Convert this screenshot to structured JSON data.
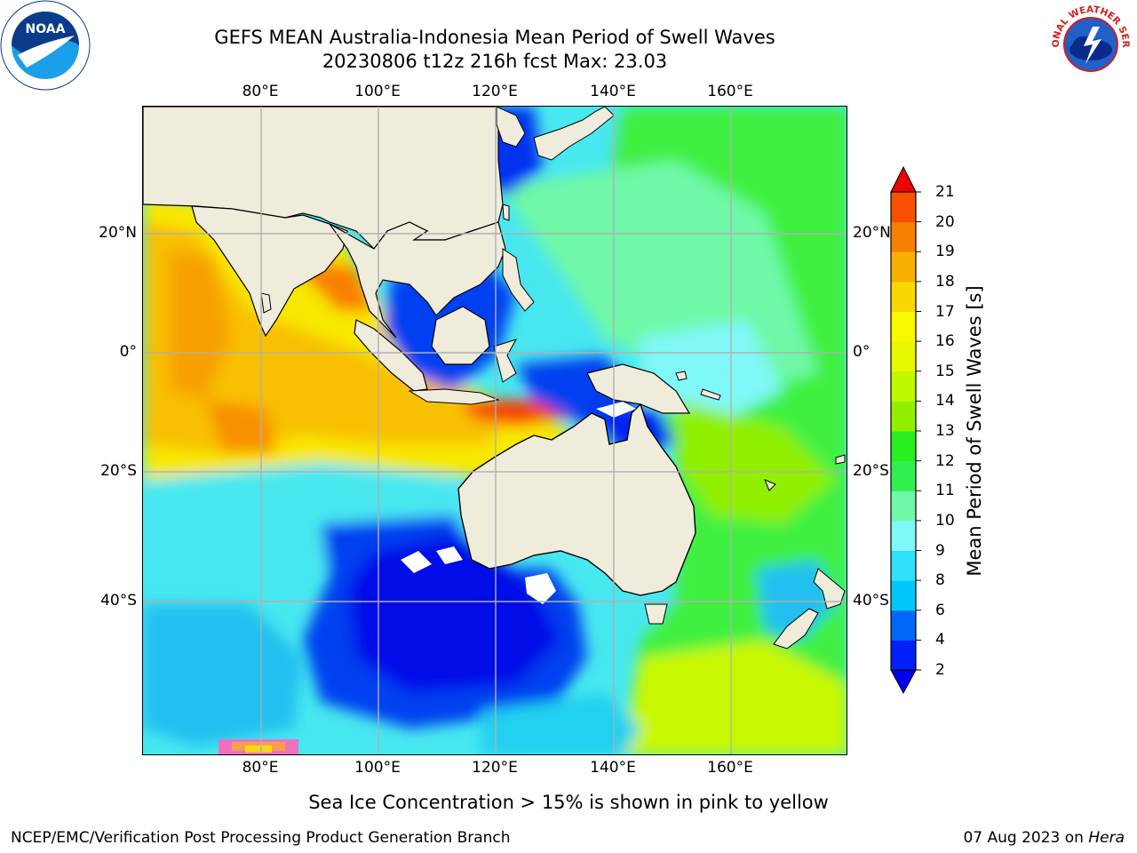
{
  "header": {
    "title_line1": "GEFS MEAN Australia-Indonesia Mean Period of Swell Waves",
    "title_line2": "20230806 t12z 216h fcst   Max: 23.03"
  },
  "map": {
    "lon_labels": [
      "80°E",
      "100°E",
      "120°E",
      "140°E",
      "160°E"
    ],
    "lat_labels": [
      "20°N",
      "0°",
      "20°S",
      "40°S"
    ],
    "extent": {
      "lon_min": 60,
      "lon_max": 180,
      "lat_min": -68,
      "lat_max": 41
    }
  },
  "colorbar": {
    "label": "Mean Period of Swell Waves [s]",
    "ticks": [
      "2",
      "4",
      "6",
      "8",
      "9",
      "10",
      "11",
      "12",
      "13",
      "14",
      "15",
      "16",
      "17",
      "18",
      "19",
      "20",
      "21"
    ],
    "colors": [
      "#0020f8",
      "#0068f8",
      "#00c8f8",
      "#30e0f8",
      "#80f8f8",
      "#70f8a8",
      "#30f050",
      "#28f020",
      "#90f000",
      "#c0f800",
      "#e8f800",
      "#f8f800",
      "#f8d800",
      "#f8b000",
      "#f88000",
      "#f85000",
      "#f82000"
    ],
    "under_color": "#0000f0",
    "over_color": "#f00000"
  },
  "notes": {
    "ice_note": "Sea Ice Concentration > 15% is shown in pink to yellow"
  },
  "footer": {
    "left": "NCEP/EMC/Verification Post Processing Product Generation Branch",
    "date": "07 Aug 2023 on ",
    "machine": "Hera"
  },
  "logos": {
    "noaa_text": "NOAA",
    "nws_text": "NATIONAL WEATHER SERVICE"
  }
}
